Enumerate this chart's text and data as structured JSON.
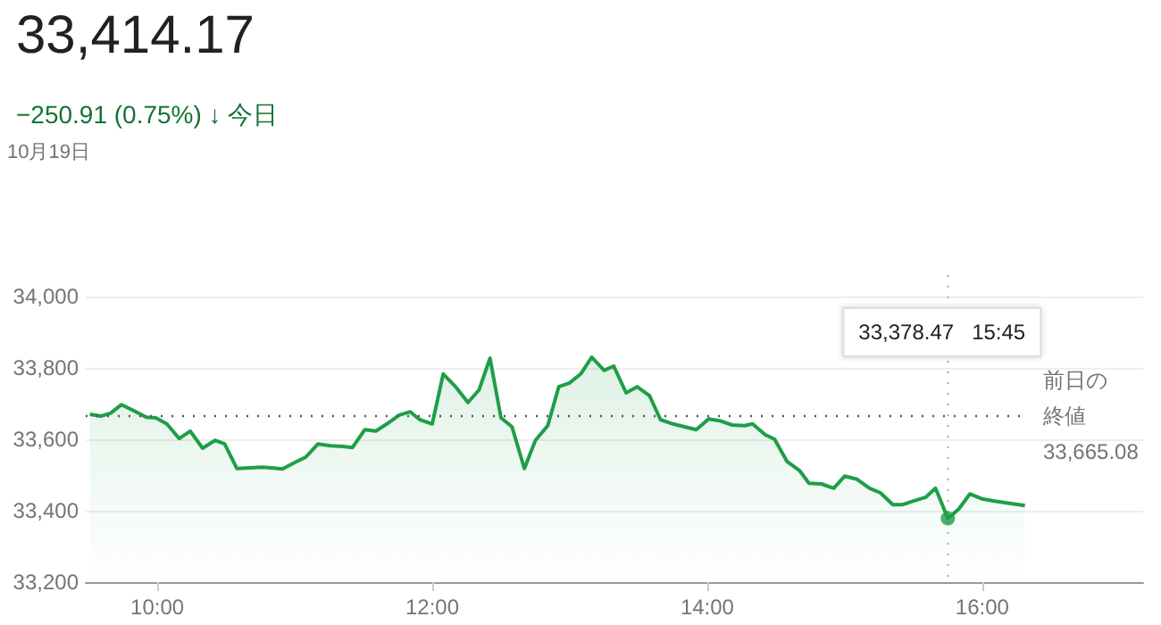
{
  "chart_data": {
    "type": "area",
    "title": "33,414.17",
    "subtitle": "−250.91 (0.75%) ↓ 今日",
    "annotations": [
      "10月19日",
      "33,378.47   15:45"
    ],
    "x": [
      9.51,
      9.59,
      9.66,
      9.74,
      9.83,
      9.92,
      9.99,
      10.07,
      10.16,
      10.24,
      10.33,
      10.42,
      10.49,
      10.58,
      10.76,
      10.83,
      10.91,
      11.0,
      11.08,
      11.17,
      11.26,
      11.35,
      11.42,
      11.51,
      11.59,
      11.67,
      11.76,
      11.84,
      11.91,
      12.0,
      12.08,
      12.17,
      12.26,
      12.34,
      12.42,
      12.5,
      12.58,
      12.67,
      12.75,
      12.84,
      12.92,
      13.0,
      13.08,
      13.16,
      13.25,
      13.32,
      13.41,
      13.49,
      13.58,
      13.66,
      13.75,
      13.92,
      14.01,
      14.09,
      14.18,
      14.27,
      14.33,
      14.42,
      14.49,
      14.58,
      14.67,
      14.74,
      14.83,
      14.92,
      15.0,
      15.09,
      15.18,
      15.26,
      15.35,
      15.42,
      15.5,
      15.59,
      15.66,
      15.75,
      15.83,
      15.91,
      16.0,
      16.09,
      16.21,
      16.31
    ],
    "series": [
      {
        "color": "#1e9e48",
        "values": [
          33670,
          33665,
          33673,
          33697,
          33680,
          33662,
          33660,
          33643,
          33602,
          33623,
          33575,
          33597,
          33587,
          33518,
          33522,
          33520,
          33517,
          33535,
          33550,
          33587,
          33582,
          33580,
          33577,
          33627,
          33623,
          33643,
          33668,
          33677,
          33655,
          33643,
          33783,
          33747,
          33703,
          33738,
          33827,
          33660,
          33635,
          33518,
          33597,
          33638,
          33747,
          33758,
          33783,
          33830,
          33793,
          33805,
          33730,
          33747,
          33722,
          33655,
          33643,
          33627,
          33657,
          33652,
          33640,
          33638,
          33643,
          33613,
          33600,
          33538,
          33513,
          33477,
          33475,
          33463,
          33497,
          33488,
          33463,
          33450,
          33417,
          33417,
          33427,
          33438,
          33463,
          33378.47,
          33405,
          33447,
          33433,
          33427,
          33420,
          33414.17
        ]
      },
      {
        "type": "scatter",
        "marker": "circle",
        "color": "#1e9e48",
        "x": [
          15.75
        ],
        "values": [
          33378.47
        ]
      }
    ],
    "xlim": [
      9.48,
      17.17
    ],
    "xticks": [
      {
        "value": 10,
        "label": "10:00"
      },
      {
        "value": 12,
        "label": "12:00"
      },
      {
        "value": 14,
        "label": "14:00"
      },
      {
        "value": 16,
        "label": "16:00"
      }
    ],
    "ylim": [
      33200,
      34000
    ],
    "yticks": [
      {
        "value": 33200,
        "label": "33,200"
      },
      {
        "value": 33400,
        "label": "33,400"
      },
      {
        "value": 33600,
        "label": "33,600"
      },
      {
        "value": 33800,
        "label": "33,800"
      },
      {
        "value": 34000,
        "label": "34,000"
      }
    ],
    "ref_lines": [
      {
        "axis": "y",
        "value": 33665.08,
        "label": "前日の終値\n33,665.08",
        "color": "#555555",
        "line_style": "dotted"
      },
      {
        "axis": "x",
        "value": 15.75,
        "color": "#aaaaaa",
        "line_style": "dotted"
      }
    ],
    "grid": "y"
  }
}
